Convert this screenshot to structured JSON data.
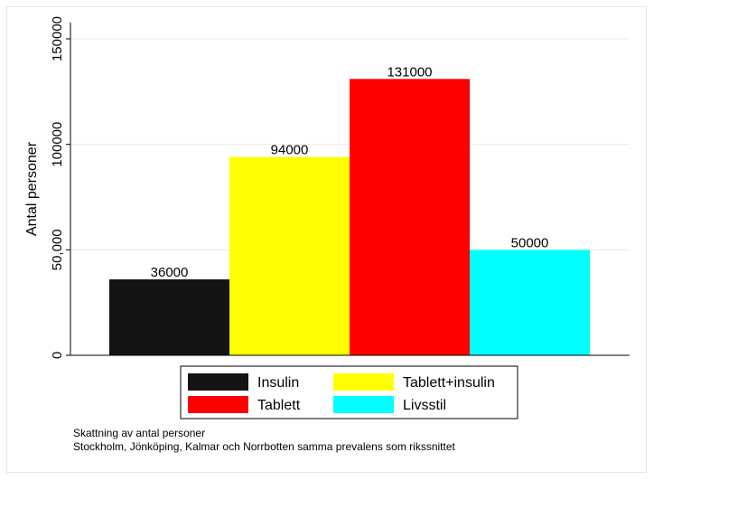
{
  "chart_data": {
    "type": "bar",
    "ylabel": "Antal personer",
    "ylim": [
      0,
      150000
    ],
    "yticks": [
      {
        "value": 0,
        "label": "0"
      },
      {
        "value": 50000,
        "label": "50,000"
      },
      {
        "value": 100000,
        "label": "100000"
      },
      {
        "value": 150000,
        "label": "150000"
      }
    ],
    "grid": true,
    "series": [
      {
        "name": "Insulin",
        "value": 36000,
        "label": "36000",
        "color": "#141414"
      },
      {
        "name": "Tablett+insulin",
        "value": 94000,
        "label": "94000",
        "color": "#ffff00"
      },
      {
        "name": "Tablett",
        "value": 131000,
        "label": "131000",
        "color": "#ff0000"
      },
      {
        "name": "Livsstil",
        "value": 50000,
        "label": "50000",
        "color": "#00ffff"
      }
    ],
    "legend_position": "bottom"
  },
  "notes": [
    "Skattning av antal personer",
    "Stockholm, Jönköping, Kalmar och Norrbotten samma prevalens som rikssnittet"
  ]
}
